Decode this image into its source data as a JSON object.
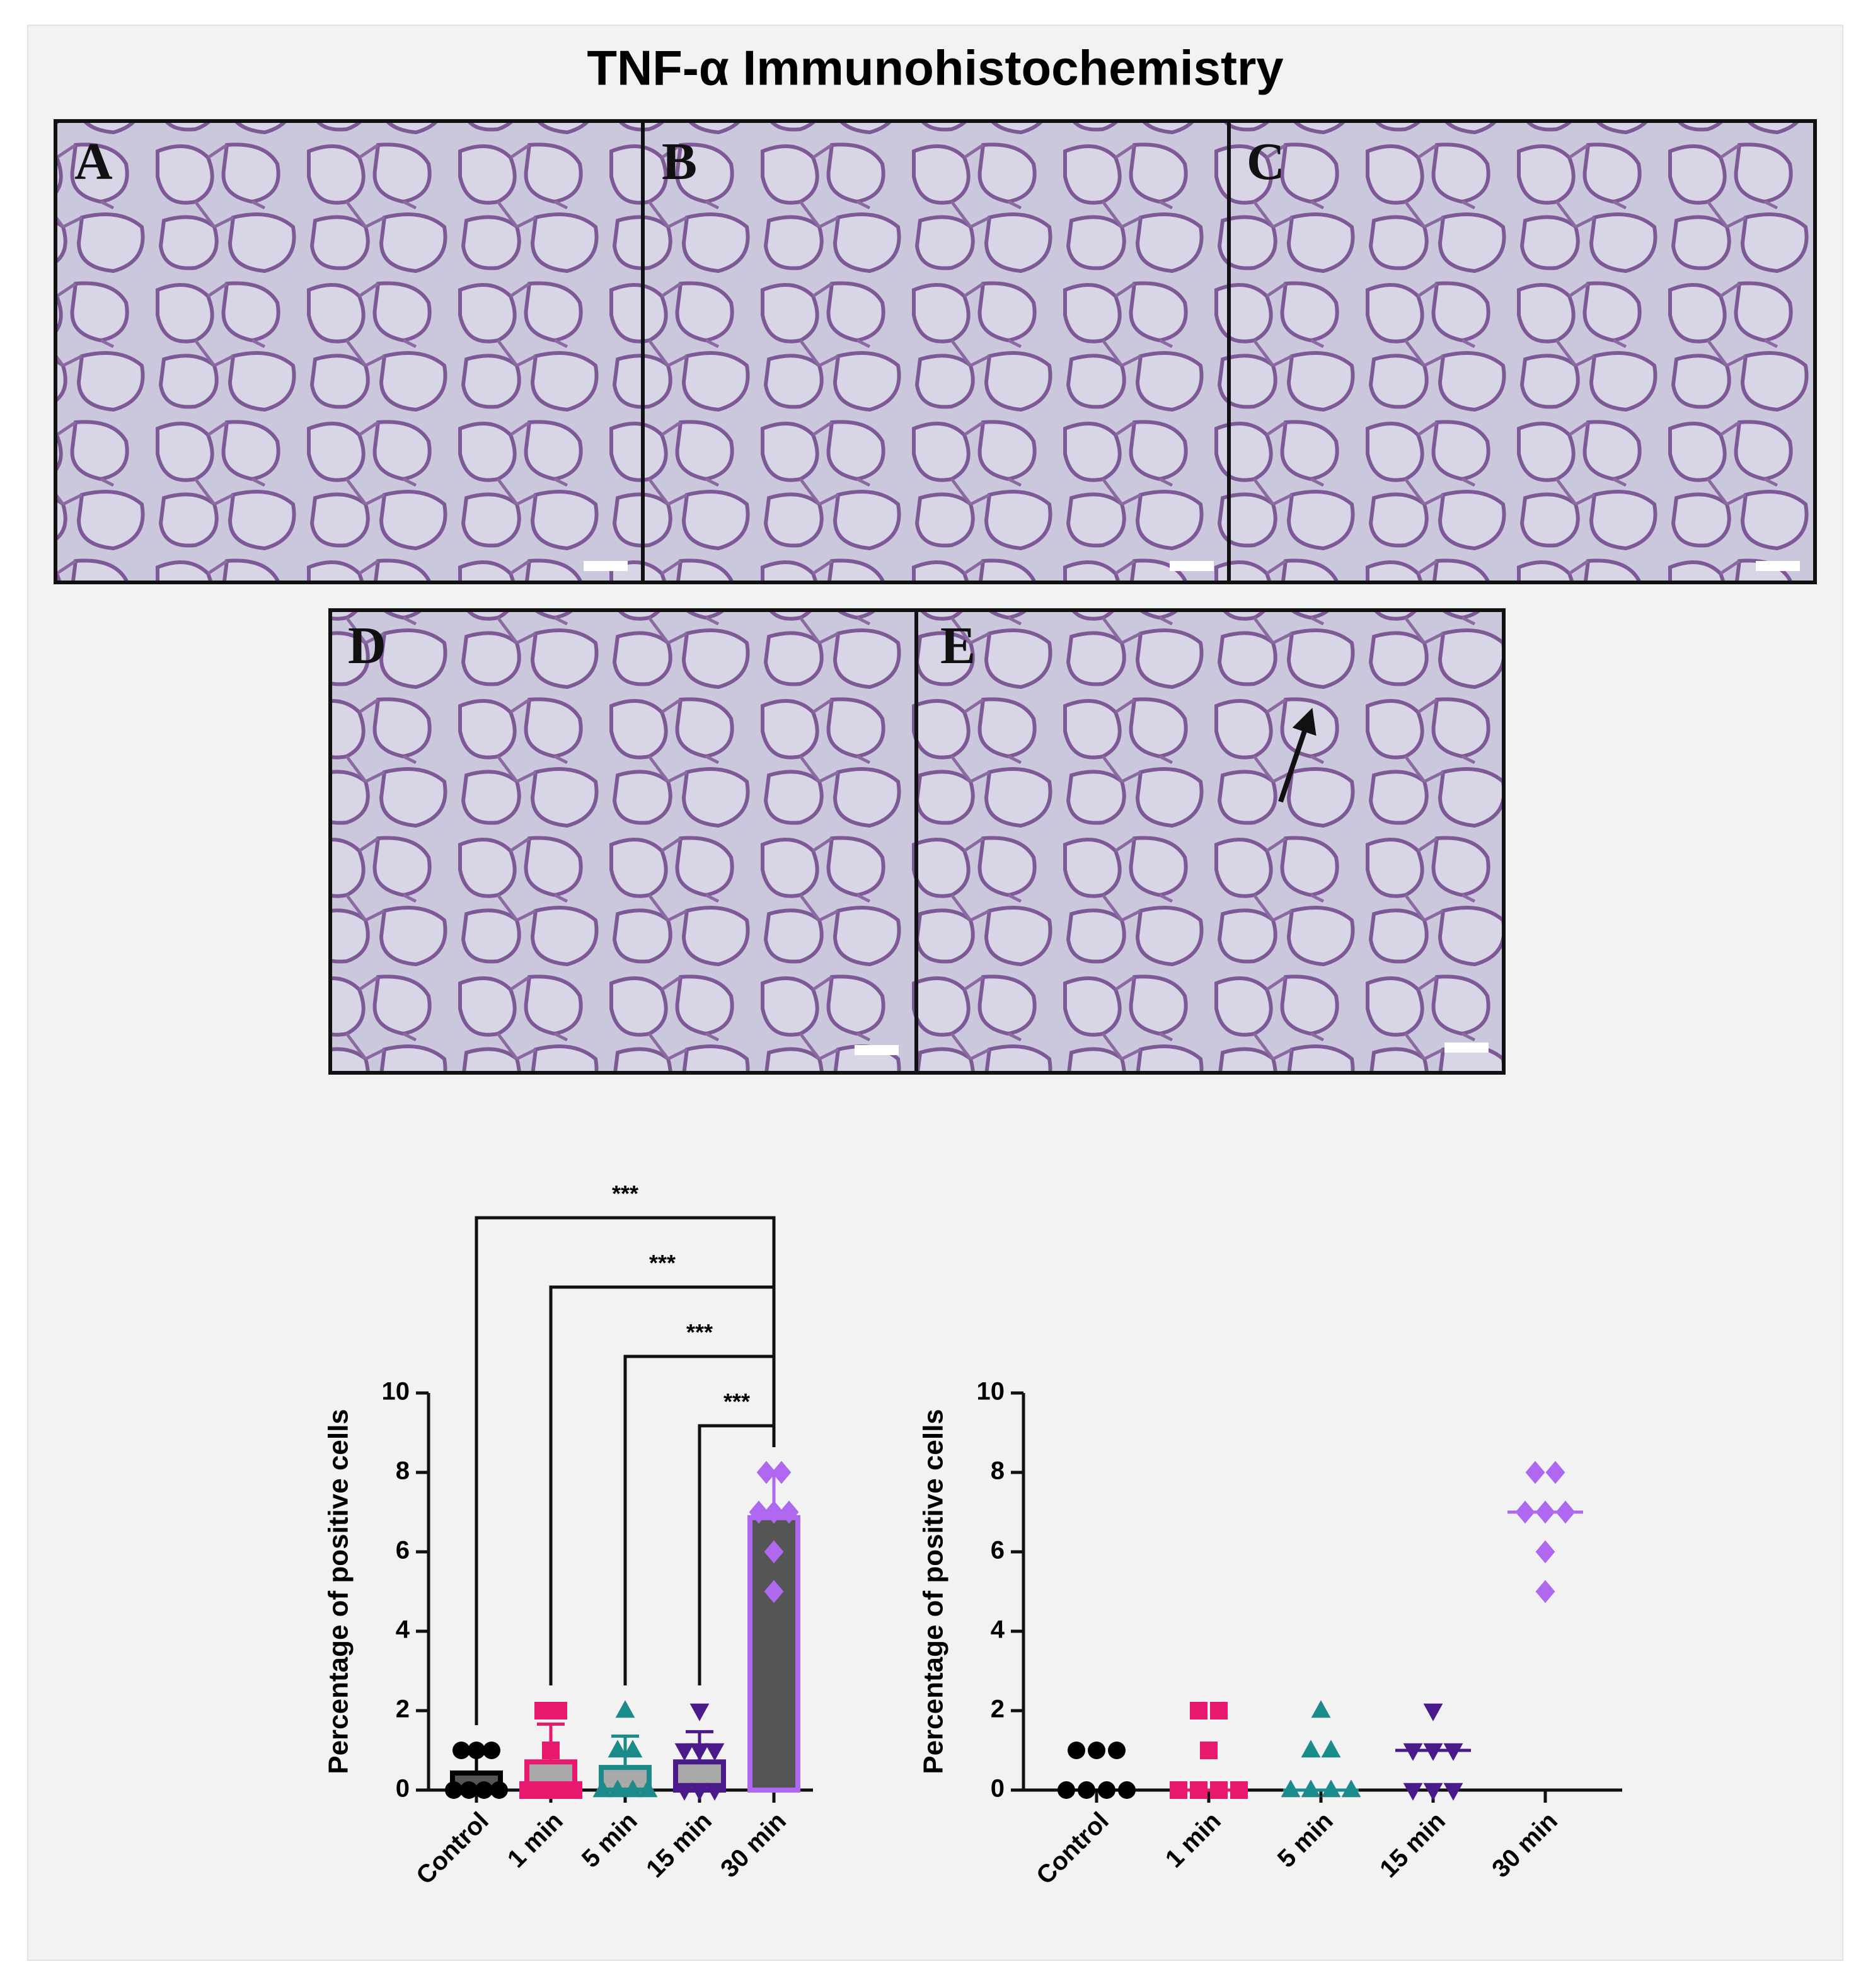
{
  "title": "TNF-α Immunohistochemistry",
  "panels": [
    "A",
    "B",
    "C",
    "D",
    "E"
  ],
  "chart_data": [
    {
      "type": "bar",
      "categories": [
        "Control",
        "1 min",
        "5 min",
        "15 min",
        "30 min"
      ],
      "values": [
        0.43,
        0.71,
        0.57,
        0.71,
        6.86
      ],
      "errors": [
        0.53,
        0.95,
        0.79,
        0.76,
        1.07
      ],
      "points": [
        [
          1,
          1,
          1,
          0,
          0,
          0,
          0
        ],
        [
          2,
          2,
          1,
          0,
          0,
          0,
          0
        ],
        [
          2,
          1,
          1,
          0,
          0,
          0,
          0
        ],
        [
          2,
          1,
          1,
          1,
          0,
          0,
          0
        ],
        [
          8,
          8,
          7,
          7,
          7,
          6,
          5
        ]
      ],
      "colors": [
        "#000000",
        "#e8186f",
        "#1a8a8a",
        "#4b1a8a",
        "#b068f0"
      ],
      "bar_fills": [
        "#555555",
        "#a9a9a9",
        "#a9a9a9",
        "#a9a9a9",
        "#555555"
      ],
      "markers": [
        "circle",
        "square",
        "triangle",
        "triangle-down",
        "diamond"
      ],
      "ylabel": "Percentage of positive cells",
      "ylim": [
        0,
        10
      ],
      "yticks": [
        0,
        2,
        4,
        6,
        8,
        10
      ],
      "annotations": [
        "***",
        "***",
        "***",
        "***"
      ]
    },
    {
      "type": "scatter",
      "categories": [
        "Control",
        "1 min",
        "5 min",
        "15 min",
        "30 min"
      ],
      "points": [
        [
          1,
          1,
          1,
          0,
          0,
          0,
          0
        ],
        [
          2,
          2,
          1,
          0,
          0,
          0,
          0
        ],
        [
          2,
          1,
          1,
          0,
          0,
          0,
          0
        ],
        [
          2,
          1,
          1,
          1,
          0,
          0,
          0
        ],
        [
          8,
          8,
          7,
          7,
          7,
          6,
          5
        ]
      ],
      "medians": [
        0,
        0,
        0,
        1,
        7
      ],
      "colors": [
        "#000000",
        "#e8186f",
        "#1a8a8a",
        "#4b1a8a",
        "#b068f0"
      ],
      "markers": [
        "circle",
        "square",
        "triangle",
        "triangle-down",
        "diamond"
      ],
      "ylabel": "Percentage of positive cells",
      "ylim": [
        0,
        10
      ],
      "yticks": [
        0,
        2,
        4,
        6,
        8,
        10
      ]
    }
  ]
}
